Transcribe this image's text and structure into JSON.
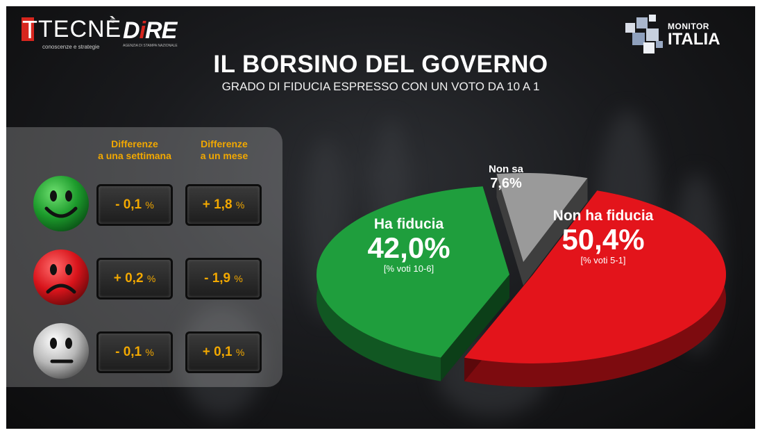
{
  "logos": {
    "tecne": {
      "name": "TECNÈ",
      "tagline": "conoscenze e strategie",
      "reg": "®"
    },
    "dire": {
      "name_a": "D",
      "name_i": "i",
      "name_b": "RE",
      "tagline": "AGENZIA DI STAMPA NAZIONALE"
    },
    "monitor": {
      "line1": "MONITOR",
      "line2": "ITALIA"
    }
  },
  "header": {
    "title": "IL BORSINO DEL GOVERNO",
    "subtitle": "GRADO DI FIDUCIA ESPRESSO CON UN VOTO DA 10  A 1"
  },
  "panel": {
    "col1": [
      "Differenze",
      "a una settimana"
    ],
    "col2": [
      "Differenze",
      "a un mese"
    ],
    "rows": [
      {
        "face": "happy-face-icon",
        "color": "#22a535",
        "week": "- 0,1",
        "month": "+ 1,8",
        "unit": "%"
      },
      {
        "face": "sad-face-icon",
        "color": "#e0141c",
        "week": "+ 0,2",
        "month": "- 1,9",
        "unit": "%"
      },
      {
        "face": "neutral-face-icon",
        "color": "#c8c8c8",
        "week": "- 0,1",
        "month": "+ 0,1",
        "unit": "%"
      }
    ]
  },
  "chart_data": {
    "type": "pie",
    "title": "IL BORSINO DEL GOVERNO",
    "subtitle": "GRADO DI FIDUCIA ESPRESSO CON UN VOTO DA 10  A 1",
    "slices": [
      {
        "label": "Ha fiducia",
        "value": 42.0,
        "display": "42,0%",
        "note": "[% voti 10-6]",
        "color": "#1f9e3d"
      },
      {
        "label": "Non sa",
        "value": 7.6,
        "display": "7,6%",
        "note": "",
        "color": "#9a9a9a"
      },
      {
        "label": "Non ha fiducia",
        "value": 50.4,
        "display": "50,4%",
        "note": "[% voti 5-1]",
        "color": "#e3141b"
      }
    ]
  }
}
